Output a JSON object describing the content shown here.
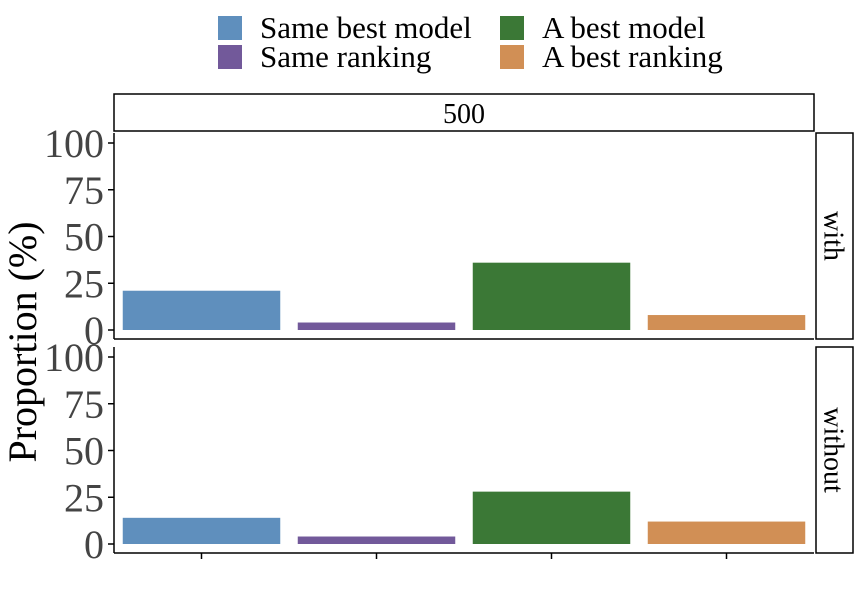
{
  "chart_data": {
    "type": "bar",
    "categories": [
      "Same best model",
      "Same ranking",
      "A best model",
      "A best ranking"
    ],
    "colors": {
      "Same best model": "#5f8fbd",
      "Same ranking": "#72599a",
      "A best model": "#3b7836",
      "A best ranking": "#d18f55"
    },
    "legend": {
      "position": "top",
      "entries": [
        "Same best model",
        "A best model",
        "Same ranking",
        "A best ranking"
      ]
    },
    "facet_column": "500",
    "ylabel": "Proportion (%)",
    "xlabel": "",
    "ylim": [
      0,
      100
    ],
    "yticks": [
      "0",
      "25",
      "50",
      "75",
      "100"
    ],
    "grid": false,
    "panels": [
      {
        "row": "with",
        "values": [
          21,
          4,
          36,
          8
        ]
      },
      {
        "row": "without",
        "values": [
          14,
          4,
          28,
          12
        ]
      }
    ]
  }
}
